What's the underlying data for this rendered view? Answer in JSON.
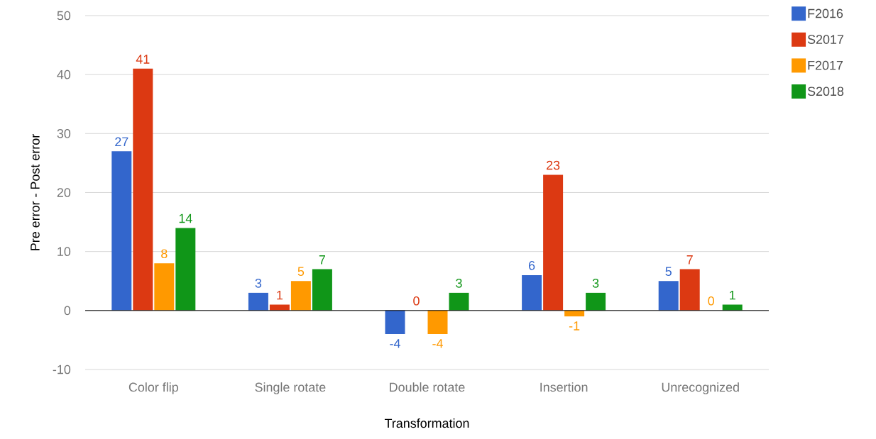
{
  "chart_data": {
    "type": "bar",
    "xlabel": "Transformation",
    "ylabel": "Pre error - Post error",
    "categories": [
      "Color flip",
      "Single rotate",
      "Double rotate",
      "Insertion",
      "Unrecognized"
    ],
    "series": [
      {
        "name": "F2016",
        "color": "#3366cc",
        "values": [
          27,
          3,
          -4,
          6,
          5
        ]
      },
      {
        "name": "S2017",
        "color": "#dc3912",
        "values": [
          41,
          1,
          0,
          23,
          7
        ]
      },
      {
        "name": "F2017",
        "color": "#ff9900",
        "values": [
          8,
          5,
          -4,
          -1,
          0
        ]
      },
      {
        "name": "S2018",
        "color": "#109618",
        "values": [
          14,
          7,
          3,
          3,
          1
        ]
      }
    ],
    "ylim": [
      -10,
      50
    ],
    "yticks": [
      -10,
      0,
      10,
      20,
      30,
      40,
      50
    ],
    "grid": "y",
    "legend": "top right",
    "data_labels": true
  }
}
